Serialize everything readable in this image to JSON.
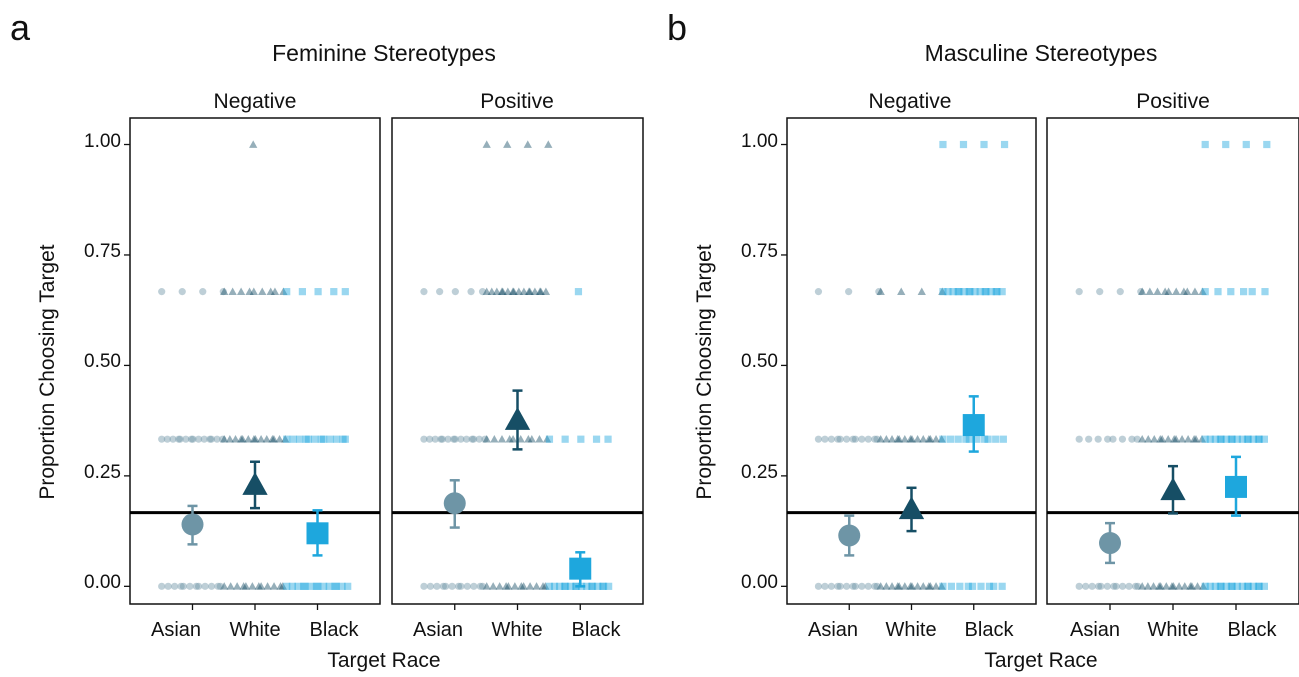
{
  "figure": {
    "panel_labels": [
      "a",
      "b"
    ]
  },
  "colors": {
    "asian": "#6e95a6",
    "white": "#164e65",
    "black": "#1ea7dd",
    "reference": "#000000"
  },
  "chart_data": [
    {
      "type": "scatter",
      "panel_label": "a",
      "title": "Feminine Stereotypes",
      "xlabel": "Target Race",
      "ylabel": "Proportion Choosing Target",
      "ylim": [
        -0.04,
        1.06
      ],
      "yticks": [
        "0.00",
        "0.25",
        "0.50",
        "0.75",
        "1.00"
      ],
      "reference_line": 0.1667,
      "categories": [
        "Asian",
        "White",
        "Black"
      ],
      "facets": [
        {
          "name": "Negative",
          "means": [
            {
              "category": "Asian",
              "mean": 0.14,
              "ci": [
                0.095,
                0.182
              ]
            },
            {
              "category": "White",
              "mean": 0.23,
              "ci": [
                0.177,
                0.282
              ]
            },
            {
              "category": "Black",
              "mean": 0.12,
              "ci": [
                0.07,
                0.172
              ]
            }
          ],
          "points": [
            {
              "category": "Asian",
              "y": 0,
              "n": 12
            },
            {
              "category": "Asian",
              "y": 0.333,
              "n": 14
            },
            {
              "category": "Asian",
              "y": 0.667,
              "n": 4
            },
            {
              "category": "White",
              "y": 0,
              "n": 12
            },
            {
              "category": "White",
              "y": 0.333,
              "n": 14
            },
            {
              "category": "White",
              "y": 0.667,
              "n": 9
            },
            {
              "category": "White",
              "y": 1,
              "n": 1
            },
            {
              "category": "Black",
              "y": 0,
              "n": 14
            },
            {
              "category": "Black",
              "y": 0.333,
              "n": 12
            },
            {
              "category": "Black",
              "y": 0.667,
              "n": 5
            }
          ]
        },
        {
          "name": "Positive",
          "means": [
            {
              "category": "Asian",
              "mean": 0.188,
              "ci": [
                0.133,
                0.24
              ]
            },
            {
              "category": "White",
              "mean": 0.377,
              "ci": [
                0.31,
                0.443
              ]
            },
            {
              "category": "Black",
              "mean": 0.04,
              "ci": [
                0.0,
                0.077
              ]
            }
          ],
          "points": [
            {
              "category": "Asian",
              "y": 0,
              "n": 12
            },
            {
              "category": "Asian",
              "y": 0.333,
              "n": 14
            },
            {
              "category": "Asian",
              "y": 0.667,
              "n": 5
            },
            {
              "category": "White",
              "y": 0,
              "n": 12
            },
            {
              "category": "White",
              "y": 0.333,
              "n": 10
            },
            {
              "category": "White",
              "y": 0.667,
              "n": 16
            },
            {
              "category": "White",
              "y": 1,
              "n": 4
            },
            {
              "category": "Black",
              "y": 0,
              "n": 16
            },
            {
              "category": "Black",
              "y": 0.333,
              "n": 5
            },
            {
              "category": "Black",
              "y": 0.667,
              "n": 1
            }
          ]
        }
      ]
    },
    {
      "type": "scatter",
      "panel_label": "b",
      "title": "Masculine Stereotypes",
      "xlabel": "Target Race",
      "ylabel": "Proportion Choosing Target",
      "ylim": [
        -0.04,
        1.06
      ],
      "yticks": [
        "0.00",
        "0.25",
        "0.50",
        "0.75",
        "1.00"
      ],
      "reference_line": 0.1667,
      "categories": [
        "Asian",
        "White",
        "Black"
      ],
      "facets": [
        {
          "name": "Negative",
          "means": [
            {
              "category": "Asian",
              "mean": 0.115,
              "ci": [
                0.07,
                0.16
              ]
            },
            {
              "category": "White",
              "mean": 0.175,
              "ci": [
                0.125,
                0.223
              ]
            },
            {
              "category": "Black",
              "mean": 0.365,
              "ci": [
                0.305,
                0.43
              ]
            }
          ],
          "points": [
            {
              "category": "Asian",
              "y": 0,
              "n": 12
            },
            {
              "category": "Asian",
              "y": 0.333,
              "n": 12
            },
            {
              "category": "Asian",
              "y": 0.667,
              "n": 3
            },
            {
              "category": "White",
              "y": 0,
              "n": 14
            },
            {
              "category": "White",
              "y": 0.333,
              "n": 14
            },
            {
              "category": "White",
              "y": 0.667,
              "n": 4
            },
            {
              "category": "Black",
              "y": 0,
              "n": 9
            },
            {
              "category": "Black",
              "y": 0.333,
              "n": 10
            },
            {
              "category": "Black",
              "y": 0.667,
              "n": 16
            },
            {
              "category": "Black",
              "y": 1,
              "n": 4
            }
          ]
        },
        {
          "name": "Positive",
          "means": [
            {
              "category": "Asian",
              "mean": 0.098,
              "ci": [
                0.053,
                0.143
              ]
            },
            {
              "category": "White",
              "mean": 0.218,
              "ci": [
                0.165,
                0.272
              ]
            },
            {
              "category": "Black",
              "mean": 0.225,
              "ci": [
                0.16,
                0.293
              ]
            }
          ],
          "points": [
            {
              "category": "Asian",
              "y": 0,
              "n": 12
            },
            {
              "category": "Asian",
              "y": 0.333,
              "n": 8
            },
            {
              "category": "Asian",
              "y": 0.667,
              "n": 4
            },
            {
              "category": "White",
              "y": 0,
              "n": 14
            },
            {
              "category": "White",
              "y": 0.333,
              "n": 13
            },
            {
              "category": "White",
              "y": 0.667,
              "n": 10
            },
            {
              "category": "Black",
              "y": 0,
              "n": 16
            },
            {
              "category": "Black",
              "y": 0.333,
              "n": 16
            },
            {
              "category": "Black",
              "y": 0.667,
              "n": 6
            },
            {
              "category": "Black",
              "y": 1,
              "n": 4
            }
          ]
        }
      ]
    }
  ]
}
